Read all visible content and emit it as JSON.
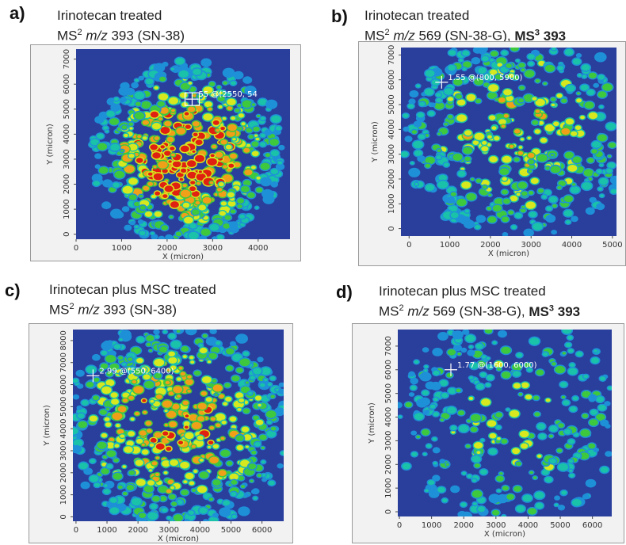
{
  "chart_data": [
    {
      "type": "heatmap",
      "label": "a)",
      "title_line1": "Irinotecan treated",
      "title_line2": {
        "prefix": "MS",
        "sup": "2",
        "italic": " m/z",
        "rest": " 393 (SN-38)",
        "bold_part": ""
      },
      "xlabel": "X (micron)",
      "ylabel": "Y (micron)",
      "xlim": [
        0,
        4700
      ],
      "ylim": [
        -200,
        7400
      ],
      "xticks": [
        0,
        1000,
        2000,
        3000,
        4000
      ],
      "yticks": [
        0,
        1000,
        2000,
        3000,
        4000,
        5000,
        6000,
        7000
      ],
      "annotation": {
        "text": "55 @(2550, 54",
        "x": 2550,
        "y": 5400
      },
      "colorscale": [
        "#2a3e9c",
        "#1e90d8",
        "#19c2a8",
        "#3ec83e",
        "#d8e81e",
        "#f0a018",
        "#e02010"
      ],
      "intensity": "high"
    },
    {
      "type": "heatmap",
      "label": "b)",
      "title_line1": "Irinotecan treated",
      "title_line2": {
        "prefix": "MS",
        "sup": "2",
        "italic": " m/z",
        "rest": " 569 (SN-38-G), ",
        "bold_part": "MS3 393"
      },
      "xlabel": "X (micron)",
      "ylabel": "Y (micron)",
      "xlim": [
        -200,
        5100
      ],
      "ylim": [
        -300,
        7300
      ],
      "xticks": [
        0,
        1000,
        2000,
        3000,
        4000,
        5000
      ],
      "yticks": [
        0,
        1000,
        2000,
        3000,
        4000,
        5000,
        6000,
        7000
      ],
      "annotation": {
        "text": "1.55 @(800, 5900)",
        "x": 800,
        "y": 5900
      },
      "colorscale": [
        "#2a3e9c",
        "#1e90d8",
        "#19c2a8",
        "#3ec83e",
        "#d8e81e",
        "#f0a018",
        "#e02010"
      ],
      "intensity": "medium"
    },
    {
      "type": "heatmap",
      "label": "c)",
      "title_line1": "Irinotecan plus MSC treated",
      "title_line2": {
        "prefix": "MS",
        "sup": "2",
        "italic": " m/z",
        "rest": " 393 (SN-38)",
        "bold_part": ""
      },
      "xlabel": "X (micron)",
      "ylabel": "Y (micron)",
      "xlim": [
        -100,
        6700
      ],
      "ylim": [
        -200,
        8500
      ],
      "xticks": [
        0,
        1000,
        2000,
        3000,
        4000,
        5000,
        6000
      ],
      "yticks": [
        0,
        1000,
        2000,
        3000,
        4000,
        5000,
        6000,
        7000,
        8000
      ],
      "annotation": {
        "text": "2.99 @(550, 6400)",
        "x": 550,
        "y": 6400
      },
      "colorscale": [
        "#2a3e9c",
        "#1e90d8",
        "#19c2a8",
        "#3ec83e",
        "#d8e81e",
        "#f0a018",
        "#e02010"
      ],
      "intensity": "medium-high"
    },
    {
      "type": "heatmap",
      "label": "d)",
      "title_line1": "Irinotecan plus MSC treated",
      "title_line2": {
        "prefix": "MS",
        "sup": "2",
        "italic": " m/z",
        "rest": " 569 (SN-38-G), ",
        "bold_part": "MS3 393"
      },
      "xlabel": "X (micron)",
      "ylabel": "Y (micron)",
      "xlim": [
        -50,
        6600
      ],
      "ylim": [
        -200,
        7700
      ],
      "xticks": [
        0,
        1000,
        2000,
        3000,
        4000,
        5000,
        6000
      ],
      "yticks": [
        0,
        1000,
        2000,
        3000,
        4000,
        5000,
        6000,
        7000
      ],
      "annotation": {
        "text": "1.77 @(1600, 6000)",
        "x": 1600,
        "y": 6000
      },
      "colorscale": [
        "#2a3e9c",
        "#1e90d8",
        "#19c2a8",
        "#3ec83e",
        "#d8e81e",
        "#f0a018",
        "#e02010"
      ],
      "intensity": "low"
    }
  ]
}
